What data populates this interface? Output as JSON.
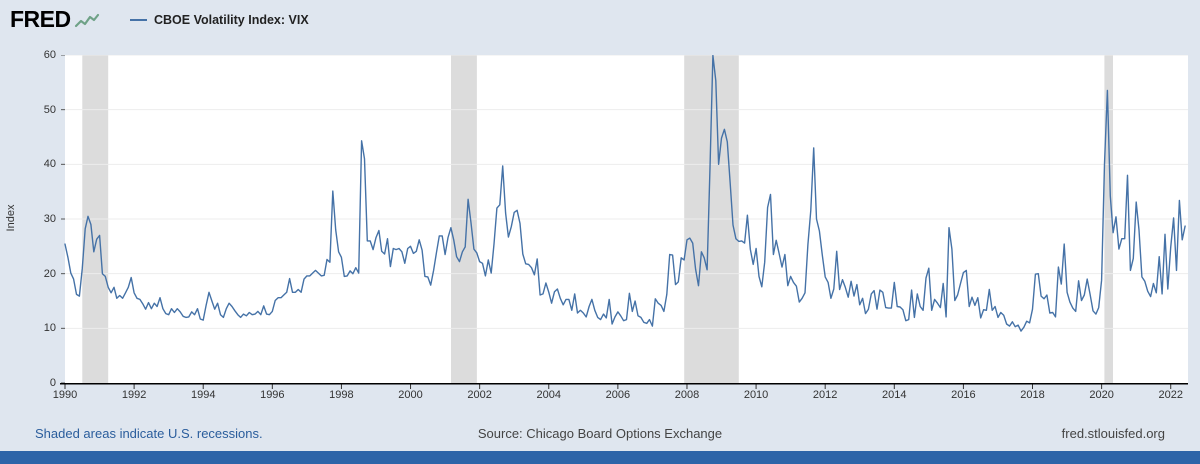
{
  "header": {
    "logo": "FRED"
  },
  "footer": {
    "recession_note": "Shaded areas indicate U.S. recessions.",
    "source": "Source: Chicago Board Options Exchange",
    "site": "fred.stlouisfed.org"
  },
  "colors": {
    "line": "#4572a7",
    "recession": "#dcdcdc",
    "background": "#dfe6ef",
    "plot_background": "#ffffff",
    "bottom_bar": "#2d64a8",
    "link": "#2a5d9c",
    "logo_sparkline": "#6fa287"
  },
  "chart_data": {
    "type": "line",
    "title": "CBOE Volatility Index: VIX",
    "ylabel": "Index",
    "xlabel": "",
    "legend_position": "top-left",
    "grid": "horizontal-faint",
    "frequency": "monthly",
    "start_year": 1990,
    "start_month": 1,
    "xlim": [
      1990,
      2022.5
    ],
    "ylim": [
      0,
      60
    ],
    "yticks": [
      0,
      10,
      20,
      30,
      40,
      50,
      60
    ],
    "xticks": [
      1990,
      1992,
      1994,
      1996,
      1998,
      2000,
      2002,
      2004,
      2006,
      2008,
      2010,
      2012,
      2014,
      2016,
      2018,
      2020,
      2022
    ],
    "recessions": [
      [
        1990.5,
        1991.25
      ],
      [
        2001.17,
        2001.92
      ],
      [
        2007.92,
        2009.5
      ],
      [
        2020.08,
        2020.33
      ]
    ],
    "values": [
      25.4,
      23.0,
      20.1,
      19.0,
      16.2,
      15.9,
      21.0,
      28.2,
      30.5,
      29.0,
      24.0,
      26.3,
      27.0,
      20.0,
      19.5,
      17.5,
      16.5,
      17.5,
      15.5,
      16.0,
      15.5,
      16.5,
      17.5,
      19.3,
      16.5,
      15.5,
      15.3,
      14.5,
      13.5,
      14.7,
      13.6,
      14.6,
      14.0,
      15.6,
      13.6,
      12.7,
      12.5,
      13.6,
      12.9,
      13.6,
      13.0,
      12.2,
      12.0,
      12.1,
      13.0,
      12.5,
      13.6,
      11.7,
      11.5,
      14.2,
      16.6,
      15.0,
      13.5,
      14.6,
      12.5,
      12.0,
      13.6,
      14.6,
      14.0,
      13.2,
      12.5,
      12.0,
      12.6,
      12.3,
      12.9,
      12.5,
      12.6,
      13.1,
      12.5,
      14.1,
      12.6,
      12.5,
      13.1,
      15.1,
      15.6,
      15.6,
      16.1,
      16.6,
      19.1,
      16.6,
      16.6,
      17.1,
      16.6,
      19.0,
      19.6,
      19.6,
      20.1,
      20.6,
      20.1,
      19.6,
      19.7,
      22.6,
      22.1,
      35.1,
      28.0,
      24.0,
      23.0,
      19.5,
      19.6,
      20.5,
      20.0,
      21.1,
      20.1,
      44.3,
      41.0,
      26.0,
      26.0,
      24.4,
      26.6,
      27.9,
      24.1,
      23.6,
      26.4,
      21.3,
      24.6,
      24.4,
      24.6,
      24.0,
      21.9,
      24.6,
      25.0,
      23.7,
      24.1,
      26.2,
      24.3,
      19.5,
      19.4,
      17.9,
      20.6,
      23.9,
      26.9,
      26.9,
      23.5,
      26.6,
      28.4,
      26.2,
      23.1,
      22.2,
      24.0,
      24.9,
      33.6,
      29.3,
      24.5,
      23.8,
      22.2,
      21.9,
      19.6,
      22.5,
      20.1,
      25.4,
      32.0,
      32.6,
      39.7,
      31.1,
      26.7,
      28.6,
      31.2,
      31.6,
      29.2,
      23.6,
      21.8,
      21.7,
      21.1,
      19.8,
      22.7,
      16.1,
      16.3,
      18.3,
      16.6,
      14.6,
      16.7,
      17.2,
      15.5,
      14.3,
      15.3,
      15.3,
      13.3,
      16.3,
      12.8,
      13.3,
      12.8,
      12.1,
      14.0,
      15.3,
      13.3,
      12.0,
      11.6,
      12.6,
      11.9,
      15.3,
      10.8,
      12.1,
      13.0,
      12.3,
      11.4,
      11.6,
      16.4,
      13.1,
      15.0,
      12.3,
      12.0,
      11.1,
      10.9,
      11.6,
      10.4,
      15.4,
      14.6,
      14.2,
      13.1,
      16.2,
      23.5,
      23.4,
      18.0,
      18.5,
      22.9,
      22.5,
      26.2,
      26.5,
      25.6,
      20.8,
      17.8,
      24.0,
      22.9,
      20.7,
      39.4,
      59.9,
      55.3,
      40.0,
      44.8,
      46.4,
      44.1,
      36.5,
      28.9,
      26.4,
      25.9,
      26.0,
      25.6,
      30.7,
      24.5,
      21.7,
      24.6,
      19.5,
      17.6,
      22.1,
      32.1,
      34.5,
      23.5,
      26.1,
      23.7,
      21.2,
      23.5,
      17.8,
      19.5,
      18.4,
      17.7,
      14.8,
      15.5,
      16.5,
      25.3,
      31.6,
      43.0,
      30.0,
      27.8,
      23.4,
      19.4,
      18.4,
      15.5,
      17.2,
      24.1,
      17.1,
      18.9,
      17.5,
      15.7,
      18.6,
      15.9,
      18.0,
      14.3,
      15.5,
      12.7,
      13.5,
      16.3,
      16.9,
      13.5,
      17.0,
      16.6,
      13.8,
      13.7,
      13.7,
      18.4,
      14.0,
      13.9,
      13.4,
      11.4,
      11.6,
      17.0,
      12.0,
      16.3,
      14.0,
      13.3,
      19.2,
      21.0,
      13.3,
      15.3,
      14.6,
      13.8,
      18.2,
      12.1,
      28.4,
      24.5,
      15.1,
      16.1,
      18.2,
      20.2,
      20.6,
      14.0,
      15.7,
      14.2,
      15.6,
      11.9,
      13.4,
      13.3,
      17.1,
      13.3,
      14.0,
      12.0,
      12.9,
      12.4,
      10.8,
      10.4,
      11.2,
      10.3,
      10.6,
      9.5,
      10.2,
      11.3,
      11.0,
      13.5,
      19.9,
      20.0,
      15.9,
      15.4,
      16.1,
      12.8,
      12.9,
      12.1,
      21.2,
      18.1,
      25.4,
      16.6,
      14.8,
      13.7,
      13.1,
      18.7,
      15.1,
      16.1,
      19.0,
      16.2,
      13.2,
      12.6,
      13.8,
      18.8,
      40.1,
      53.5,
      34.2,
      27.5,
      30.4,
      24.5,
      26.4,
      26.4,
      38.0,
      20.6,
      22.8,
      33.1,
      28.0,
      19.4,
      18.6,
      16.8,
      15.8,
      18.2,
      16.5,
      23.1,
      16.3,
      27.2,
      17.2,
      24.8,
      30.2,
      20.6,
      33.4,
      26.2,
      28.7
    ]
  }
}
